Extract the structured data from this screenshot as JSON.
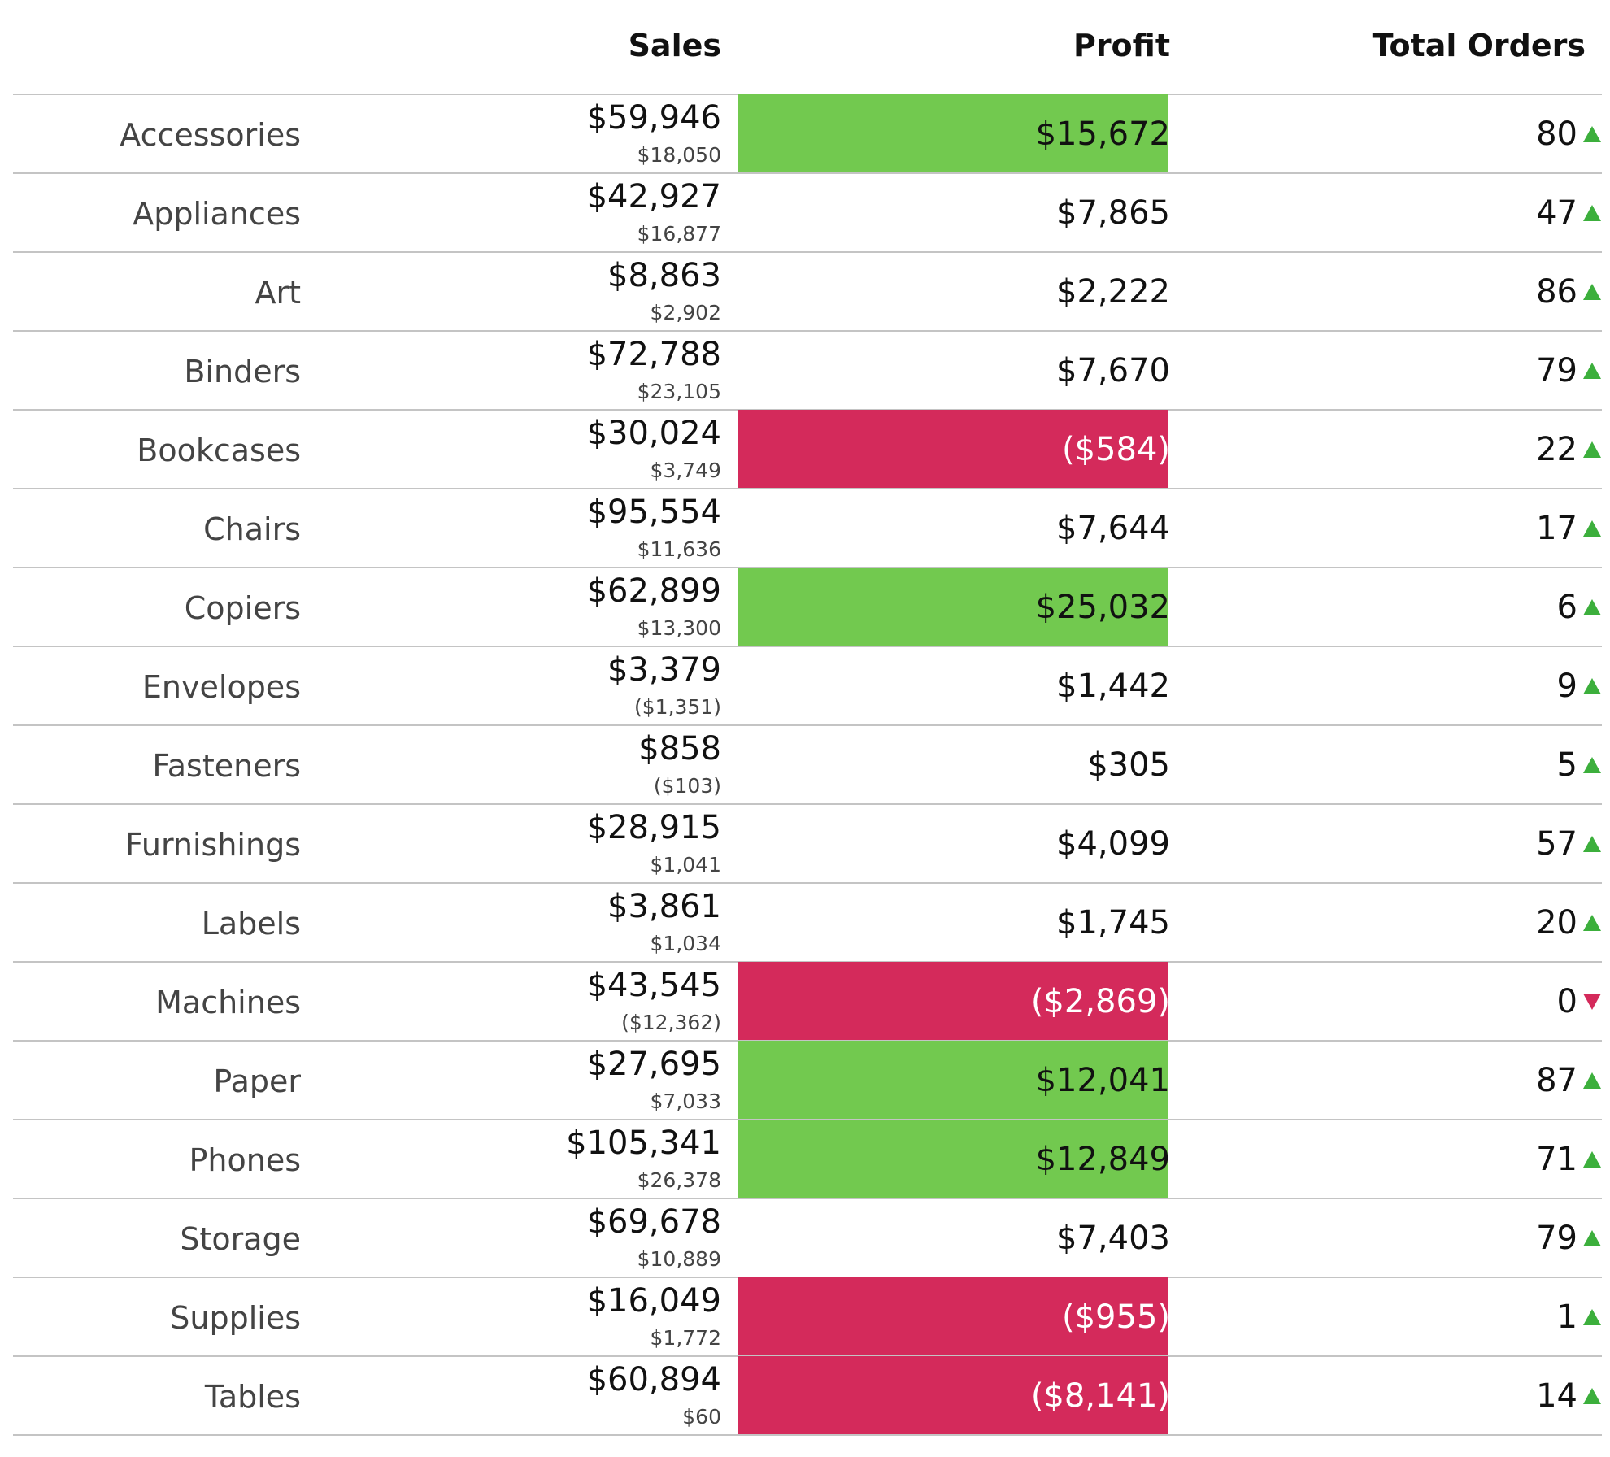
{
  "chart_data": {
    "type": "table",
    "columns": [
      "Sales",
      "Profit",
      "Total Orders"
    ],
    "colors": {
      "profit_high": "#72c94f",
      "profit_negative": "#d42a5b",
      "arrow_up": "#3caf3c",
      "arrow_down": "#d42a5b"
    },
    "rows": [
      {
        "category": "Accessories",
        "sales": "$59,946",
        "sales_sub": "$18,050",
        "profit": "$15,672",
        "profit_value": 15672,
        "highlight": "high",
        "orders": "80",
        "trend": "up"
      },
      {
        "category": "Appliances",
        "sales": "$42,927",
        "sales_sub": "$16,877",
        "profit": "$7,865",
        "profit_value": 7865,
        "highlight": "none",
        "orders": "47",
        "trend": "up"
      },
      {
        "category": "Art",
        "sales": "$8,863",
        "sales_sub": "$2,902",
        "profit": "$2,222",
        "profit_value": 2222,
        "highlight": "none",
        "orders": "86",
        "trend": "up"
      },
      {
        "category": "Binders",
        "sales": "$72,788",
        "sales_sub": "$23,105",
        "profit": "$7,670",
        "profit_value": 7670,
        "highlight": "none",
        "orders": "79",
        "trend": "up"
      },
      {
        "category": "Bookcases",
        "sales": "$30,024",
        "sales_sub": "$3,749",
        "profit": "($584)",
        "profit_value": -584,
        "highlight": "negative",
        "orders": "22",
        "trend": "up"
      },
      {
        "category": "Chairs",
        "sales": "$95,554",
        "sales_sub": "$11,636",
        "profit": "$7,644",
        "profit_value": 7644,
        "highlight": "none",
        "orders": "17",
        "trend": "up"
      },
      {
        "category": "Copiers",
        "sales": "$62,899",
        "sales_sub": "$13,300",
        "profit": "$25,032",
        "profit_value": 25032,
        "highlight": "high",
        "orders": "6",
        "trend": "up"
      },
      {
        "category": "Envelopes",
        "sales": "$3,379",
        "sales_sub": "($1,351)",
        "profit": "$1,442",
        "profit_value": 1442,
        "highlight": "none",
        "orders": "9",
        "trend": "up"
      },
      {
        "category": "Fasteners",
        "sales": "$858",
        "sales_sub": "($103)",
        "profit": "$305",
        "profit_value": 305,
        "highlight": "none",
        "orders": "5",
        "trend": "up"
      },
      {
        "category": "Furnishings",
        "sales": "$28,915",
        "sales_sub": "$1,041",
        "profit": "$4,099",
        "profit_value": 4099,
        "highlight": "none",
        "orders": "57",
        "trend": "up"
      },
      {
        "category": "Labels",
        "sales": "$3,861",
        "sales_sub": "$1,034",
        "profit": "$1,745",
        "profit_value": 1745,
        "highlight": "none",
        "orders": "20",
        "trend": "up"
      },
      {
        "category": "Machines",
        "sales": "$43,545",
        "sales_sub": "($12,362)",
        "profit": "($2,869)",
        "profit_value": -2869,
        "highlight": "negative",
        "orders": "0",
        "trend": "down"
      },
      {
        "category": "Paper",
        "sales": "$27,695",
        "sales_sub": "$7,033",
        "profit": "$12,041",
        "profit_value": 12041,
        "highlight": "high",
        "orders": "87",
        "trend": "up"
      },
      {
        "category": "Phones",
        "sales": "$105,341",
        "sales_sub": "$26,378",
        "profit": "$12,849",
        "profit_value": 12849,
        "highlight": "high",
        "orders": "71",
        "trend": "up"
      },
      {
        "category": "Storage",
        "sales": "$69,678",
        "sales_sub": "$10,889",
        "profit": "$7,403",
        "profit_value": 7403,
        "highlight": "none",
        "orders": "79",
        "trend": "up"
      },
      {
        "category": "Supplies",
        "sales": "$16,049",
        "sales_sub": "$1,772",
        "profit": "($955)",
        "profit_value": -955,
        "highlight": "negative",
        "orders": "1",
        "trend": "up"
      },
      {
        "category": "Tables",
        "sales": "$60,894",
        "sales_sub": "$60",
        "profit": "($8,141)",
        "profit_value": -8141,
        "highlight": "negative",
        "orders": "14",
        "trend": "up"
      }
    ]
  }
}
